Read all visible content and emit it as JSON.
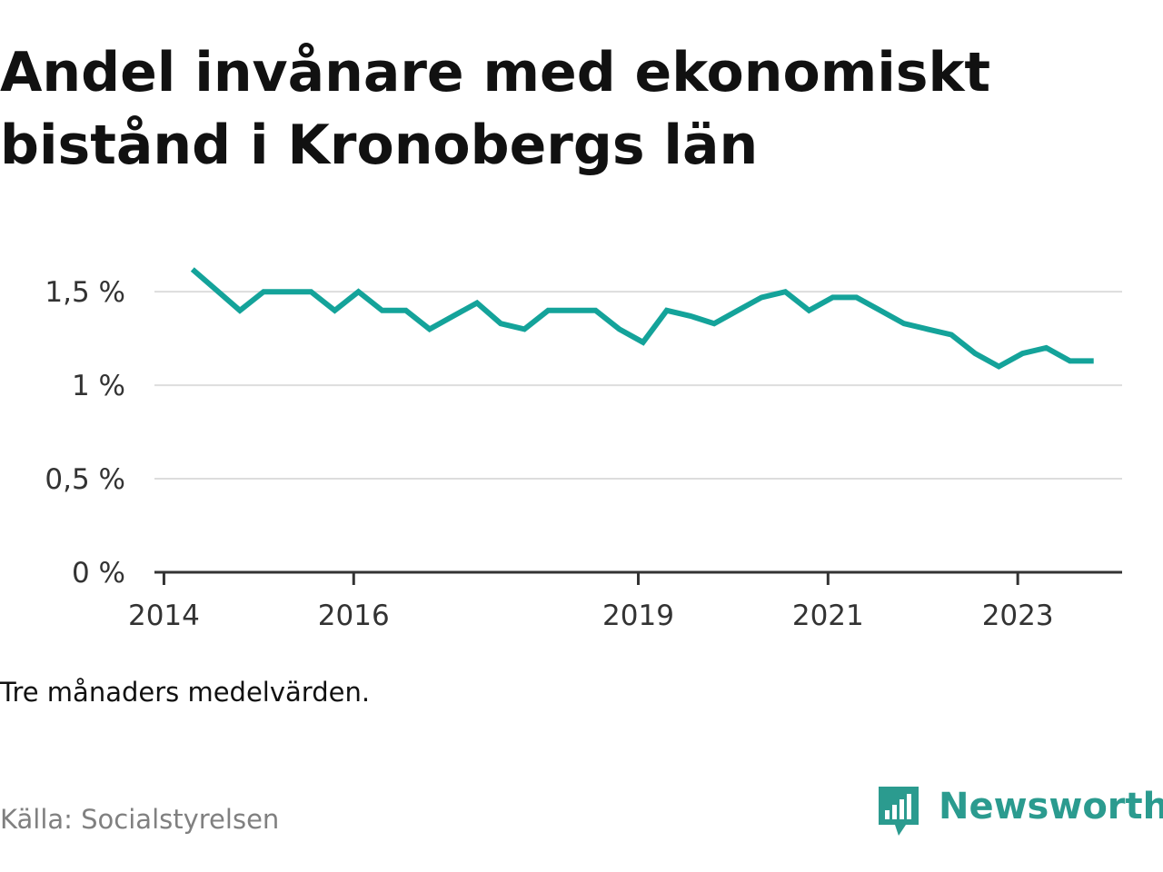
{
  "title": "Andel invånare med ekonomiskt bistånd i Kronobergs län",
  "note": "Tre månaders medelvärden.",
  "source": "Källa: Socialstyrelsen",
  "brand": {
    "name": "Newsworthy",
    "color": "#2b9b8f",
    "icon": "newsworthy-chart-icon"
  },
  "chart_data": {
    "type": "line",
    "title": "Andel invånare med ekonomiskt bistånd i Kronobergs län",
    "xlabel": "",
    "ylabel": "",
    "line_color": "#14a39a",
    "grid": true,
    "y_ticks": [
      {
        "value": 0,
        "label": "0 %"
      },
      {
        "value": 0.5,
        "label": "0,5 %"
      },
      {
        "value": 1.0,
        "label": "1 %"
      },
      {
        "value": 1.5,
        "label": "1,5 %"
      }
    ],
    "x_ticks": [
      {
        "value": 2014.0,
        "label": "2014"
      },
      {
        "value": 2016.0,
        "label": "2016"
      },
      {
        "value": 2019.0,
        "label": "2019"
      },
      {
        "value": 2021.0,
        "label": "2021"
      },
      {
        "value": 2023.0,
        "label": "2023"
      }
    ],
    "xlim": [
      2013.9,
      2024.1
    ],
    "ylim": [
      0,
      1.7
    ],
    "series": [
      {
        "x": [
          2014.3,
          2014.55,
          2014.8,
          2015.05,
          2015.3,
          2015.55,
          2015.8,
          2016.05,
          2016.3,
          2016.55,
          2016.8,
          2017.05,
          2017.3,
          2017.55,
          2017.8,
          2018.05,
          2018.3,
          2018.55,
          2018.8,
          2019.05,
          2019.3,
          2019.55,
          2019.8,
          2020.05,
          2020.3,
          2020.55,
          2020.8,
          2021.05,
          2021.3,
          2021.55,
          2021.8,
          2022.05,
          2022.3,
          2022.55,
          2022.8,
          2023.05,
          2023.3,
          2023.55,
          2023.8
        ],
        "values": [
          1.62,
          1.51,
          1.4,
          1.5,
          1.5,
          1.5,
          1.4,
          1.5,
          1.4,
          1.4,
          1.3,
          1.37,
          1.44,
          1.33,
          1.3,
          1.4,
          1.4,
          1.4,
          1.3,
          1.23,
          1.4,
          1.37,
          1.33,
          1.4,
          1.47,
          1.5,
          1.4,
          1.47,
          1.47,
          1.4,
          1.33,
          1.3,
          1.27,
          1.17,
          1.1,
          1.17,
          1.2,
          1.13,
          1.13
        ]
      }
    ]
  }
}
